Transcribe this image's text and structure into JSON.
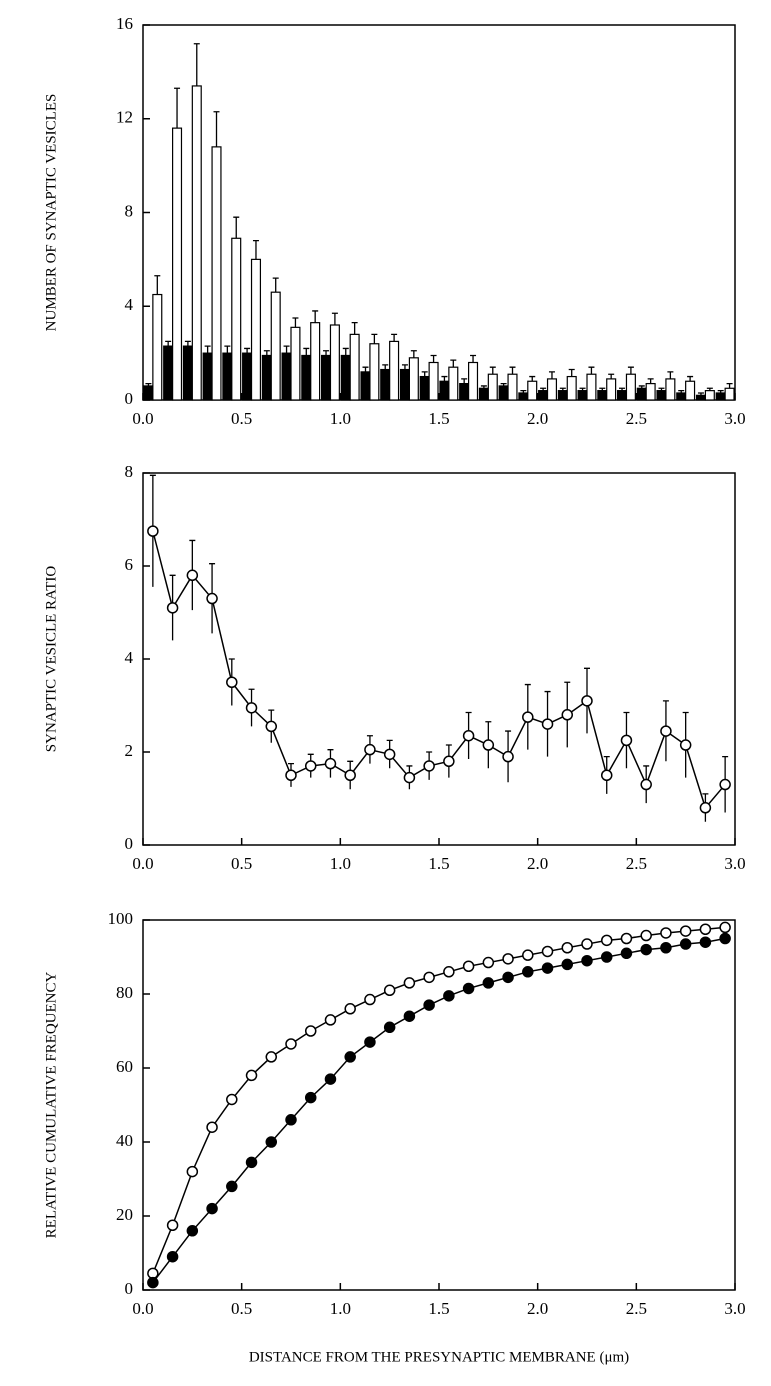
{
  "chart_data": [
    {
      "type": "bar",
      "ylabel": "NUMBER OF SYNAPTIC VESICLES",
      "error_bars": "upper",
      "x": [
        0.05,
        0.15,
        0.25,
        0.35,
        0.45,
        0.55,
        0.65,
        0.75,
        0.85,
        0.95,
        1.05,
        1.15,
        1.25,
        1.35,
        1.45,
        1.55,
        1.65,
        1.75,
        1.85,
        1.95,
        2.05,
        2.15,
        2.25,
        2.35,
        2.45,
        2.55,
        2.65,
        2.75,
        2.85,
        2.95
      ],
      "series": [
        {
          "color": "#000000",
          "values": [
            0.6,
            2.3,
            2.3,
            2.0,
            2.0,
            2.0,
            1.9,
            2.0,
            1.9,
            1.9,
            1.9,
            1.2,
            1.3,
            1.3,
            1.0,
            0.8,
            0.7,
            0.5,
            0.6,
            0.3,
            0.4,
            0.4,
            0.4,
            0.4,
            0.4,
            0.5,
            0.4,
            0.3,
            0.2,
            0.3
          ],
          "errors": [
            0.1,
            0.2,
            0.2,
            0.3,
            0.3,
            0.2,
            0.2,
            0.3,
            0.3,
            0.2,
            0.3,
            0.2,
            0.2,
            0.2,
            0.2,
            0.2,
            0.2,
            0.1,
            0.1,
            0.1,
            0.1,
            0.1,
            0.1,
            0.1,
            0.1,
            0.1,
            0.1,
            0.1,
            0.1,
            0.1
          ]
        },
        {
          "color": "#ffffff",
          "values": [
            4.5,
            11.6,
            13.4,
            10.8,
            6.9,
            6.0,
            4.6,
            3.1,
            3.3,
            3.2,
            2.8,
            2.4,
            2.5,
            1.8,
            1.6,
            1.4,
            1.6,
            1.1,
            1.1,
            0.8,
            0.9,
            1.0,
            1.1,
            0.9,
            1.1,
            0.7,
            0.9,
            0.8,
            0.4,
            0.5
          ],
          "errors": [
            0.8,
            1.7,
            1.8,
            1.5,
            0.9,
            0.8,
            0.6,
            0.4,
            0.5,
            0.5,
            0.5,
            0.4,
            0.3,
            0.3,
            0.3,
            0.3,
            0.3,
            0.3,
            0.3,
            0.2,
            0.3,
            0.3,
            0.3,
            0.2,
            0.3,
            0.2,
            0.3,
            0.2,
            0.1,
            0.2
          ]
        }
      ],
      "xlim": [
        0,
        3
      ],
      "xticks": [
        {
          "value": 0,
          "label": "0.0"
        },
        0.5,
        {
          "value": 1,
          "label": "1.0"
        },
        1.5,
        {
          "value": 2,
          "label": "2.0"
        },
        2.5,
        {
          "value": 3,
          "label": "3.0"
        }
      ],
      "ylim": [
        0,
        16
      ],
      "yticks": [
        0,
        4,
        8,
        12,
        16
      ]
    },
    {
      "type": "line",
      "ylabel": "SYNAPTIC VESICLE RATIO",
      "error_bars": "both",
      "x": [
        0.05,
        0.15,
        0.25,
        0.35,
        0.45,
        0.55,
        0.65,
        0.75,
        0.85,
        0.95,
        1.05,
        1.15,
        1.25,
        1.35,
        1.45,
        1.55,
        1.65,
        1.75,
        1.85,
        1.95,
        2.05,
        2.15,
        2.25,
        2.35,
        2.45,
        2.55,
        2.65,
        2.75,
        2.85,
        2.95
      ],
      "series": [
        {
          "color": "#000000",
          "fill": "#ffffff",
          "values": [
            6.75,
            5.1,
            5.8,
            5.3,
            3.5,
            2.95,
            2.55,
            1.5,
            1.7,
            1.75,
            1.5,
            2.05,
            1.95,
            1.45,
            1.7,
            1.8,
            2.35,
            2.15,
            1.9,
            2.75,
            2.6,
            2.8,
            3.1,
            1.5,
            2.25,
            1.3,
            2.45,
            2.15,
            0.8,
            1.3
          ],
          "errors": [
            1.2,
            0.7,
            0.75,
            0.75,
            0.5,
            0.4,
            0.35,
            0.25,
            0.25,
            0.3,
            0.3,
            0.3,
            0.3,
            0.25,
            0.3,
            0.35,
            0.5,
            0.5,
            0.55,
            0.7,
            0.7,
            0.7,
            0.7,
            0.4,
            0.6,
            0.4,
            0.65,
            0.7,
            0.3,
            0.6
          ]
        }
      ],
      "xlim": [
        0,
        3
      ],
      "xticks": [
        {
          "value": 0,
          "label": "0.0"
        },
        0.5,
        {
          "value": 1,
          "label": "1.0"
        },
        1.5,
        {
          "value": 2,
          "label": "2.0"
        },
        2.5,
        {
          "value": 3,
          "label": "3.0"
        }
      ],
      "ylim": [
        0,
        8
      ],
      "yticks": [
        0,
        2,
        4,
        6,
        8
      ]
    },
    {
      "type": "line",
      "ylabel": "RELATIVE CUMULATIVE FREQUENCY",
      "xlabel": "DISTANCE FROM THE PRESYNAPTIC MEMBRANE (μm)",
      "x": [
        0.05,
        0.15,
        0.25,
        0.35,
        0.45,
        0.55,
        0.65,
        0.75,
        0.85,
        0.95,
        1.05,
        1.15,
        1.25,
        1.35,
        1.45,
        1.55,
        1.65,
        1.75,
        1.85,
        1.95,
        2.05,
        2.15,
        2.25,
        2.35,
        2.45,
        2.55,
        2.65,
        2.75,
        2.85,
        2.95
      ],
      "series": [
        {
          "color": "#000000",
          "fill": "#ffffff",
          "values": [
            4.5,
            17.5,
            32,
            44,
            51.5,
            58,
            63,
            66.5,
            70,
            73,
            76,
            78.5,
            81,
            83,
            84.5,
            86,
            87.5,
            88.5,
            89.5,
            90.5,
            91.5,
            92.5,
            93.5,
            94.5,
            95,
            95.8,
            96.5,
            97,
            97.5,
            98
          ]
        },
        {
          "color": "#000000",
          "fill": "#000000",
          "values": [
            2,
            9,
            16,
            22,
            28,
            34.5,
            40,
            46,
            52,
            57,
            63,
            67,
            71,
            74,
            77,
            79.5,
            81.5,
            83,
            84.5,
            86,
            87,
            88,
            89,
            90,
            91,
            92,
            92.5,
            93.5,
            94,
            95
          ]
        }
      ],
      "xlim": [
        0,
        3
      ],
      "xticks": [
        {
          "value": 0,
          "label": "0.0"
        },
        0.5,
        {
          "value": 1,
          "label": "1.0"
        },
        1.5,
        {
          "value": 2,
          "label": "2.0"
        },
        2.5,
        {
          "value": 3,
          "label": "3.0"
        }
      ],
      "ylim": [
        0,
        100
      ],
      "yticks": [
        0,
        20,
        40,
        60,
        80,
        100
      ]
    }
  ]
}
